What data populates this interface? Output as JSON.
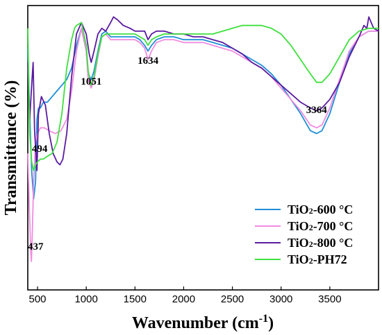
{
  "chart_data": {
    "type": "line",
    "xlabel_main": "Wavenumber (cm",
    "xlabel_sup": "-1",
    "xlabel_end": ")",
    "ylabel": "Transmittance (%)",
    "xlim": [
      400,
      4000
    ],
    "xticks": [
      500,
      1000,
      1500,
      2000,
      2500,
      3000,
      3500
    ],
    "y_ticks_shown": false,
    "grid": false,
    "legend_position": "bottom-right",
    "annotations": [
      {
        "text": "494",
        "x": 494,
        "y": 16
      },
      {
        "text": "437",
        "x": 437,
        "y": 10
      },
      {
        "text": "1051",
        "x": 1051,
        "y": 71
      },
      {
        "text": "1634",
        "x": 1634,
        "y": 79
      },
      {
        "text": "3364",
        "x": 3364,
        "y": 55
      }
    ],
    "series": [
      {
        "name": "TiO2-600 °C",
        "legend_main": "TiO",
        "legend_sub": "2",
        "legend_rest": "-600 °C",
        "color": "#1f8fd6",
        "x": [
          400,
          420,
          440,
          460,
          480,
          494,
          510,
          530,
          560,
          600,
          650,
          700,
          750,
          800,
          850,
          900,
          950,
          1000,
          1020,
          1051,
          1080,
          1120,
          1160,
          1200,
          1250,
          1300,
          1350,
          1400,
          1450,
          1500,
          1550,
          1600,
          1634,
          1670,
          1720,
          1800,
          1900,
          2000,
          2100,
          2200,
          2300,
          2400,
          2500,
          2600,
          2700,
          2800,
          2900,
          3000,
          3100,
          3200,
          3300,
          3364,
          3420,
          3500,
          3600,
          3700,
          3800,
          3900,
          4000
        ],
        "y": [
          85,
          62,
          42,
          32,
          38,
          60,
          64,
          64,
          66,
          66,
          68,
          70,
          72,
          74,
          78,
          86,
          92,
          84,
          76,
          74,
          77,
          84,
          90,
          91,
          89,
          89,
          89,
          89,
          89,
          89,
          88,
          86,
          84,
          86,
          88,
          89,
          89,
          88,
          88,
          88,
          87,
          86,
          85,
          83,
          81,
          79,
          76,
          72,
          67,
          62,
          56,
          55,
          56,
          62,
          73,
          83,
          89,
          91,
          91
        ]
      },
      {
        "name": "TiO2-700 °C",
        "legend_main": "TiO",
        "legend_sub": "2",
        "legend_rest": "-700 °C",
        "color": "#f08ce0",
        "x": [
          400,
          415,
          430,
          437,
          445,
          460,
          480,
          500,
          530,
          570,
          620,
          680,
          740,
          800,
          850,
          900,
          950,
          1000,
          1020,
          1051,
          1080,
          1120,
          1160,
          1200,
          1250,
          1300,
          1350,
          1400,
          1450,
          1500,
          1550,
          1600,
          1634,
          1670,
          1720,
          1800,
          1900,
          2000,
          2100,
          2200,
          2300,
          2400,
          2500,
          2600,
          2700,
          2800,
          2900,
          3000,
          3100,
          3200,
          3300,
          3364,
          3420,
          3500,
          3600,
          3700,
          3800,
          3900,
          4000
        ],
        "y": [
          48,
          30,
          14,
          10,
          18,
          38,
          52,
          55,
          57,
          57,
          56,
          55,
          56,
          60,
          70,
          84,
          92,
          84,
          74,
          71,
          74,
          82,
          89,
          90,
          88,
          88,
          88,
          88,
          88,
          88,
          87,
          85,
          81,
          84,
          87,
          88,
          88,
          87,
          87,
          87,
          86,
          85,
          84,
          82,
          80,
          78,
          75,
          71,
          67,
          63,
          58,
          57,
          58,
          64,
          74,
          84,
          89,
          91,
          91
        ]
      },
      {
        "name": "TiO2-800 °C",
        "legend_main": "TiO",
        "legend_sub": "2",
        "legend_rest": "-800 °C",
        "color": "#5a1aa0",
        "x": [
          400,
          420,
          440,
          455,
          470,
          494,
          510,
          540,
          580,
          620,
          660,
          700,
          730,
          760,
          800,
          850,
          900,
          950,
          1000,
          1030,
          1051,
          1080,
          1120,
          1160,
          1200,
          1250,
          1280,
          1320,
          1380,
          1450,
          1500,
          1550,
          1600,
          1634,
          1670,
          1720,
          1800,
          1900,
          2000,
          2100,
          2200,
          2300,
          2400,
          2500,
          2600,
          2700,
          2800,
          2900,
          3000,
          3100,
          3200,
          3300,
          3364,
          3420,
          3500,
          3600,
          3700,
          3800,
          3850,
          3880,
          3900,
          3950,
          4000
        ],
        "y": [
          80,
          60,
          72,
          80,
          56,
          42,
          62,
          68,
          65,
          55,
          48,
          45,
          44,
          46,
          55,
          75,
          90,
          94,
          90,
          83,
          80,
          84,
          90,
          92,
          91,
          94,
          96,
          95,
          93,
          92,
          91,
          91,
          91,
          88,
          90,
          91,
          91,
          90,
          90,
          89,
          89,
          88,
          87,
          85,
          83,
          80,
          78,
          75,
          72,
          69,
          66,
          64,
          63,
          64,
          67,
          73,
          82,
          89,
          93,
          92,
          96,
          92,
          91
        ]
      },
      {
        "name": "TiO2-PH72",
        "legend_main": "TiO",
        "legend_sub": "2",
        "legend_rest": "-PH72",
        "color": "#3ee03e",
        "x": [
          400,
          420,
          440,
          460,
          480,
          500,
          530,
          560,
          600,
          650,
          700,
          750,
          800,
          850,
          880,
          900,
          950,
          1000,
          1020,
          1051,
          1080,
          1120,
          1160,
          1200,
          1250,
          1300,
          1350,
          1400,
          1450,
          1500,
          1550,
          1600,
          1634,
          1670,
          1720,
          1800,
          1900,
          2000,
          2100,
          2200,
          2300,
          2400,
          2500,
          2600,
          2700,
          2800,
          2900,
          3000,
          3100,
          3200,
          3300,
          3364,
          3420,
          3500,
          3600,
          3700,
          3800,
          3900,
          4000
        ],
        "y": [
          92,
          55,
          45,
          42,
          44,
          45,
          46,
          46,
          47,
          48,
          52,
          62,
          78,
          88,
          92,
          93,
          94,
          86,
          77,
          72,
          75,
          83,
          89,
          90,
          90,
          90,
          90,
          90,
          90,
          90,
          89,
          88,
          86,
          88,
          89,
          90,
          90,
          90,
          90,
          90,
          90,
          91,
          92,
          93,
          93,
          93,
          92,
          90,
          86,
          81,
          76,
          73,
          73,
          76,
          82,
          88,
          91,
          92,
          92
        ]
      }
    ]
  }
}
